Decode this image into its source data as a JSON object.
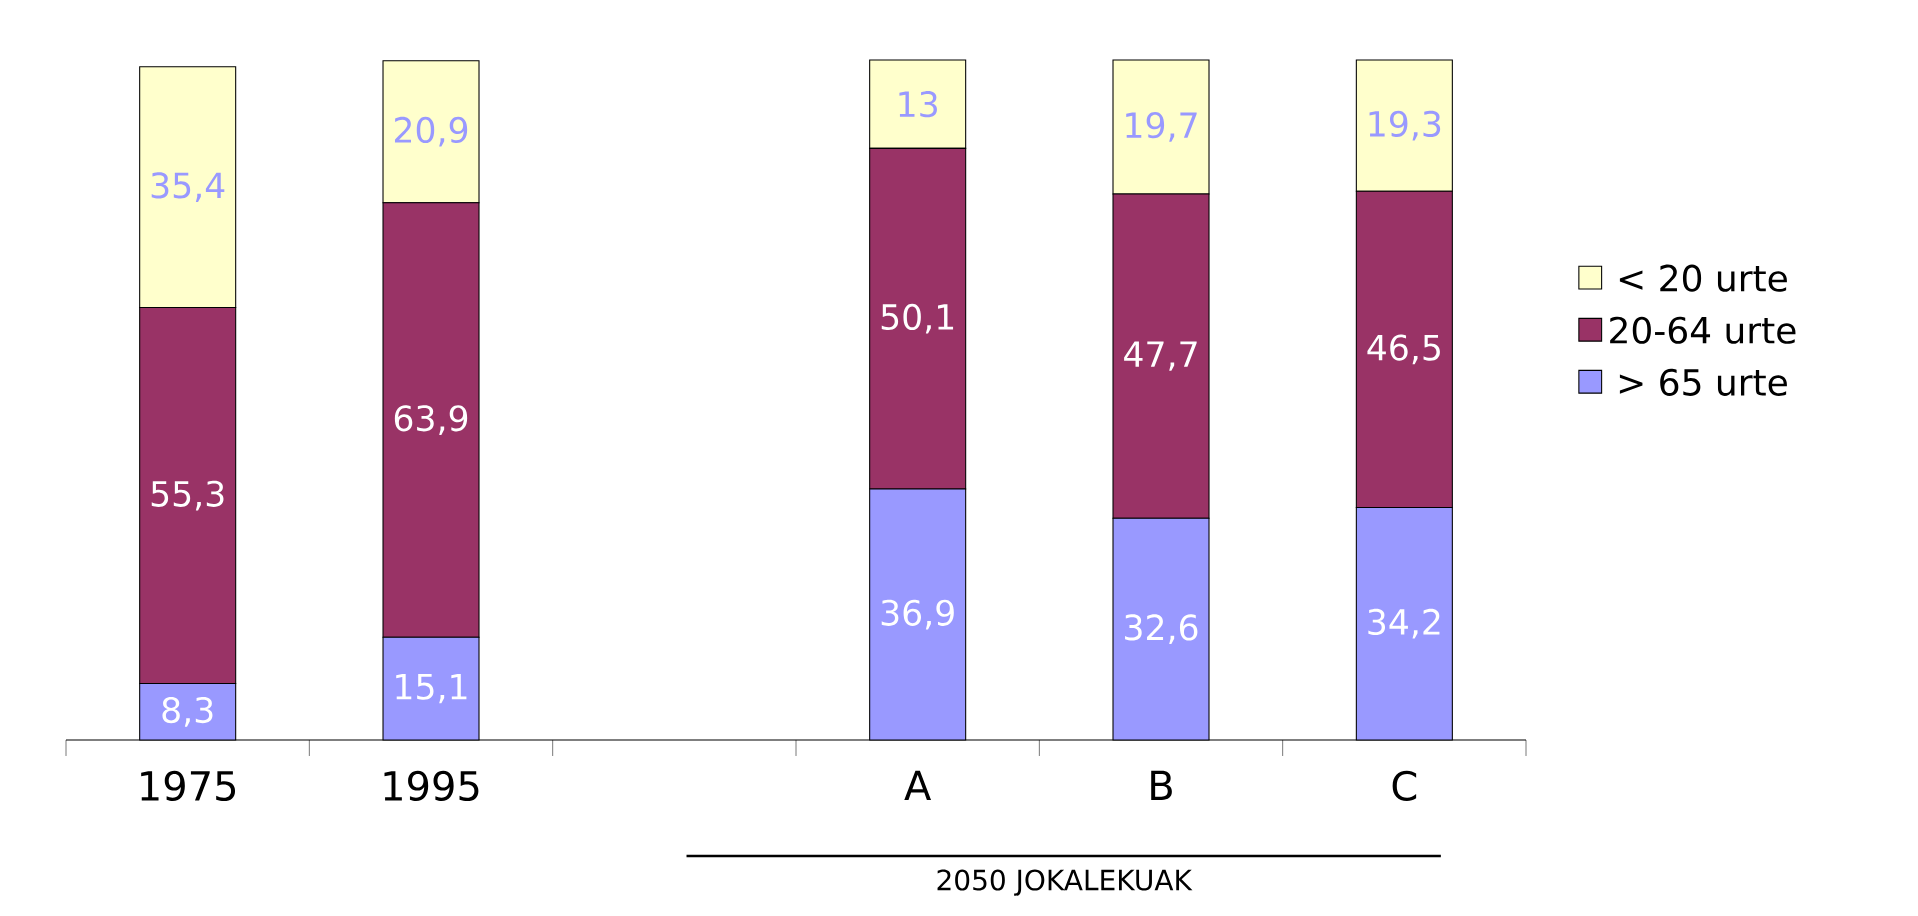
{
  "chart_data": {
    "type": "bar",
    "stacked": true,
    "categories": [
      "1975",
      "1995",
      null,
      "A",
      "B",
      "C"
    ],
    "series": [
      {
        "name": "> 65 urte",
        "color": "#9999ff",
        "values": [
          8.3,
          15.1,
          null,
          36.9,
          32.6,
          34.2
        ],
        "value_labels": [
          "8,3",
          "15,1",
          null,
          "36,9",
          "32,6",
          "34,2"
        ]
      },
      {
        "name": "20-64 urte",
        "color": "#993366",
        "values": [
          55.3,
          63.9,
          null,
          50.1,
          47.7,
          46.5
        ],
        "value_labels": [
          "55,3",
          "63,9",
          null,
          "50,1",
          "47,7",
          "46,5"
        ]
      },
      {
        "name": "< 20 urte",
        "color": "#ffffcc",
        "values": [
          35.4,
          20.9,
          null,
          13,
          19.7,
          19.3
        ],
        "value_labels": [
          "35,4",
          "20,9",
          null,
          "13",
          "19,7",
          "19,3"
        ]
      }
    ],
    "ylim": [
      0,
      100
    ],
    "tick_labels": "x",
    "legend": "right",
    "grid": false,
    "annotations": [
      "2050 JOKALEKUAK"
    ]
  }
}
